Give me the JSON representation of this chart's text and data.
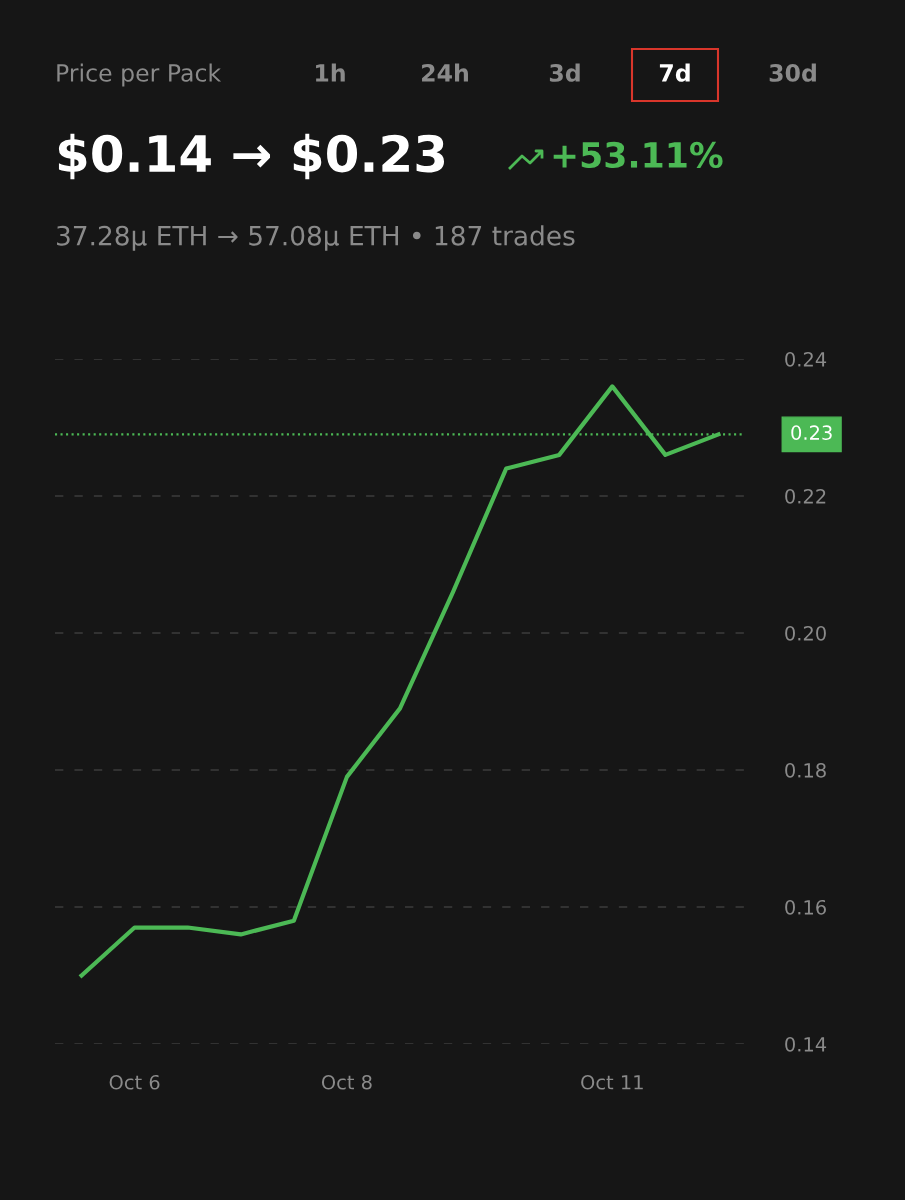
{
  "chart_data": {
    "type": "line",
    "title": "Price per Pack",
    "annotations": [
      "1h",
      "24h",
      "3d",
      "7d",
      "30d",
      "$0.14 → $0.23",
      "+53.11%",
      "37.28μ ETH → 57.08μ ETH • 187 trades"
    ],
    "categories": [
      null,
      "Oct 6",
      null,
      null,
      null,
      "Oct 8",
      null,
      null,
      null,
      null,
      "Oct 11",
      null,
      null
    ],
    "series": [
      {
        "color": "#4cb955",
        "values": [
          0.15,
          0.157,
          0.157,
          0.156,
          0.158,
          0.179,
          0.189,
          0.206,
          0.224,
          0.226,
          0.236,
          0.226,
          0.229
        ]
      }
    ],
    "ylim": [
      0.14,
      0.24
    ],
    "yticks": [
      0.14,
      0.16,
      0.18,
      {
        "value": 0.2,
        "label": "0.20"
      },
      0.22,
      0.24
    ],
    "ref_lines": [
      {
        "axis": "y",
        "value": 0.229,
        "label": "0.23",
        "color": "#4cb955",
        "line_style": "dotted"
      }
    ],
    "grid": "y",
    "legend": false,
    "marker": "none",
    "line_style": "solid"
  }
}
